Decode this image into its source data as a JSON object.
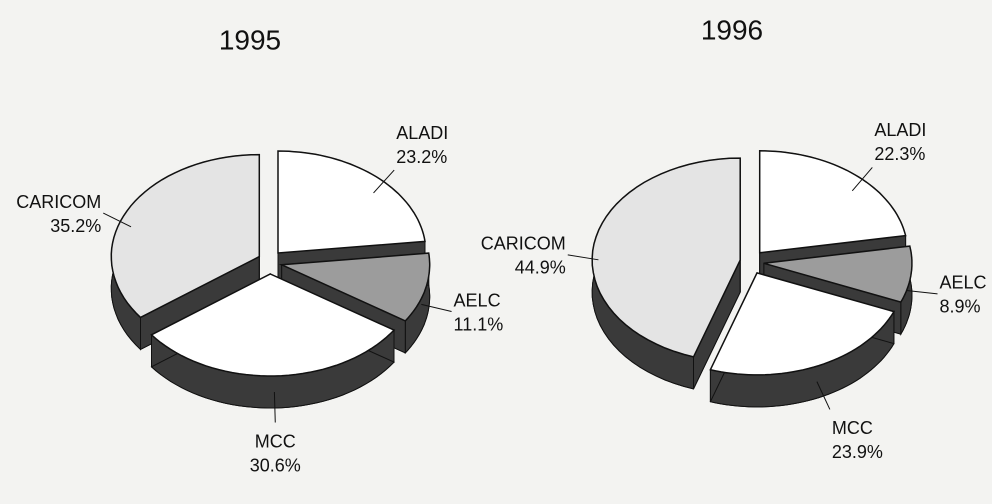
{
  "chart_data": [
    {
      "type": "pie",
      "title": "1995",
      "categories": [
        "ALADI",
        "AELC",
        "MCC",
        "CARICOM"
      ],
      "values": [
        23.2,
        11.1,
        30.6,
        35.2
      ],
      "value_labels": [
        "23.2%",
        "11.1%",
        "30.6%",
        "35.2%"
      ],
      "colors": [
        "#ffffff",
        "#9c9c9c",
        "#ffffff",
        "#e4e4e4"
      ]
    },
    {
      "type": "pie",
      "title": "1996",
      "categories": [
        "ALADI",
        "AELC",
        "MCC",
        "CARICOM"
      ],
      "values": [
        22.3,
        8.9,
        23.9,
        44.9
      ],
      "value_labels": [
        "22.3%",
        "8.9%",
        "23.9%",
        "44.9%"
      ],
      "colors": [
        "#ffffff",
        "#9c9c9c",
        "#ffffff",
        "#e4e4e4"
      ]
    }
  ]
}
